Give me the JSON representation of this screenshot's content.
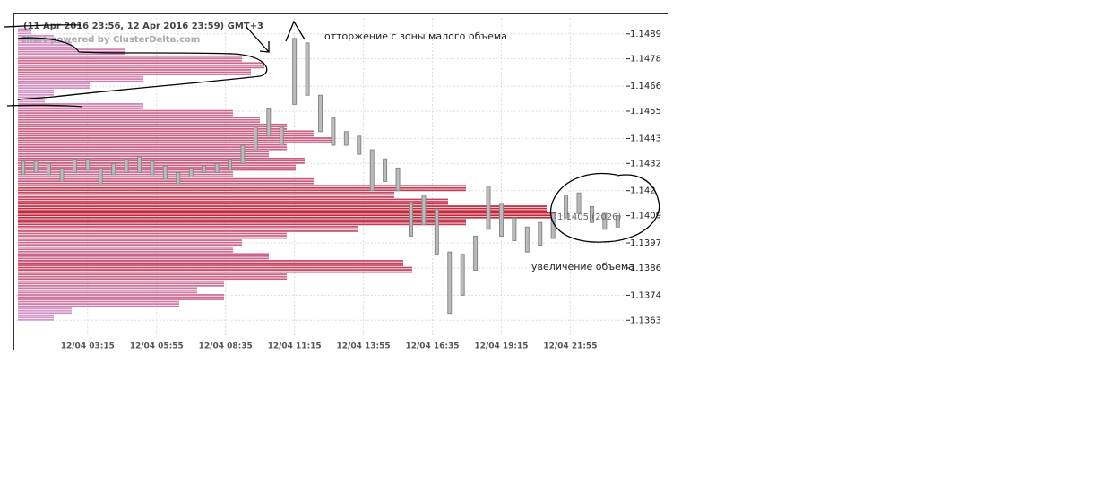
{
  "chart_data": {
    "type": "range_bar",
    "header": "(11 Apr 2016 23:56, 12 Apr 2016 23:59) GMT+3",
    "watermark": "Chart powered by ClusterDelta.com",
    "annotations": [
      "отторжение с зоны малого объема",
      "увеличение объема",
      "1.1405 (2026)"
    ],
    "bar_color": "#888888",
    "grid": true,
    "xlim": [
      29,
      1441
    ],
    "xticks": [
      {
        "value": 195,
        "label": "12/04 03:15"
      },
      {
        "value": 355,
        "label": "12/04 05:55"
      },
      {
        "value": 515,
        "label": "12/04 08:35"
      },
      {
        "value": 675,
        "label": "12/04 11:15"
      },
      {
        "value": 835,
        "label": "12/04 13:55"
      },
      {
        "value": 995,
        "label": "12/04 16:35"
      },
      {
        "value": 1155,
        "label": "12/04 19:15"
      },
      {
        "value": 1315,
        "label": "12/04 21:55"
      }
    ],
    "ylim": [
      1.1356,
      1.1496
    ],
    "yticks": [
      1.1489,
      1.1478,
      1.1466,
      1.1455,
      1.1443,
      1.1432,
      1.142,
      1.1409,
      1.1397,
      1.1386,
      1.1374,
      1.1363
    ],
    "x": [
      45,
      75,
      105,
      135,
      165,
      195,
      225,
      255,
      285,
      315,
      345,
      375,
      405,
      435,
      465,
      495,
      525,
      555,
      585,
      615,
      645,
      675,
      705,
      735,
      765,
      795,
      825,
      855,
      885,
      915,
      945,
      975,
      1005,
      1035,
      1065,
      1095,
      1125,
      1155,
      1185,
      1215,
      1245,
      1275,
      1305,
      1335,
      1365,
      1395,
      1425
    ],
    "lows": [
      1.1427,
      1.1428,
      1.1427,
      1.1424,
      1.1428,
      1.1429,
      1.1423,
      1.1427,
      1.1428,
      1.1428,
      1.1427,
      1.1425,
      1.1423,
      1.1426,
      1.1428,
      1.1428,
      1.1429,
      1.1432,
      1.1438,
      1.1444,
      1.144,
      1.1458,
      1.1462,
      1.1446,
      1.144,
      1.144,
      1.1436,
      1.142,
      1.1424,
      1.142,
      1.14,
      1.1405,
      1.1392,
      1.1366,
      1.1374,
      1.1385,
      1.1403,
      1.14,
      1.1398,
      1.1393,
      1.1396,
      1.1399,
      1.1408,
      1.141,
      1.1406,
      1.1403,
      1.1404
    ],
    "highs": [
      1.1433,
      1.1433,
      1.1432,
      1.143,
      1.1434,
      1.1434,
      1.143,
      1.1432,
      1.1434,
      1.1435,
      1.1433,
      1.1431,
      1.1428,
      1.143,
      1.1431,
      1.1432,
      1.1434,
      1.144,
      1.1448,
      1.1456,
      1.1448,
      1.1487,
      1.1485,
      1.1462,
      1.1452,
      1.1446,
      1.1444,
      1.1438,
      1.1434,
      1.143,
      1.1415,
      1.1418,
      1.1412,
      1.1393,
      1.1392,
      1.14,
      1.1422,
      1.1414,
      1.1408,
      1.1404,
      1.1406,
      1.141,
      1.1418,
      1.1419,
      1.1413,
      1.141,
      1.1409
    ],
    "volume_profile": {
      "prices": [
        1.149,
        1.1487,
        1.1484,
        1.1481,
        1.1478,
        1.1475,
        1.1472,
        1.1469,
        1.1466,
        1.1463,
        1.146,
        1.1457,
        1.1454,
        1.1451,
        1.1448,
        1.1445,
        1.1442,
        1.1439,
        1.1436,
        1.1433,
        1.143,
        1.1427,
        1.1424,
        1.1421,
        1.1418,
        1.1415,
        1.1412,
        1.1409,
        1.1406,
        1.1403,
        1.14,
        1.1397,
        1.1394,
        1.1391,
        1.1388,
        1.1385,
        1.1382,
        1.1379,
        1.1376,
        1.1373,
        1.137,
        1.1367,
        1.1364
      ],
      "volumes": [
        15,
        40,
        60,
        120,
        250,
        275,
        260,
        140,
        80,
        40,
        30,
        140,
        240,
        270,
        300,
        330,
        350,
        300,
        280,
        320,
        310,
        240,
        330,
        500,
        420,
        480,
        590,
        600,
        500,
        380,
        300,
        250,
        240,
        280,
        430,
        440,
        300,
        230,
        200,
        230,
        180,
        60,
        40
      ],
      "low_color": "#d49ad0",
      "high_color": "#c0283c"
    }
  }
}
